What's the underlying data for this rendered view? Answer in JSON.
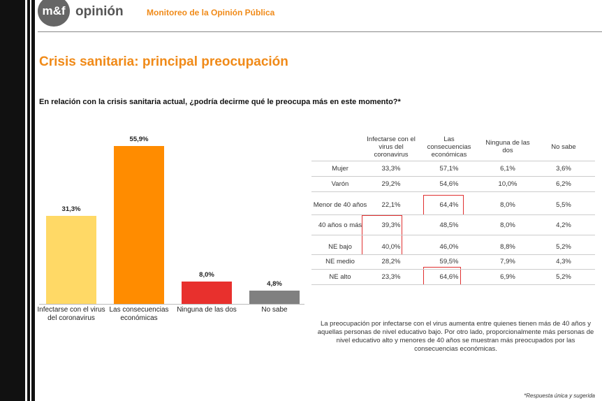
{
  "header": {
    "logo": "m&f",
    "brand": "opinión",
    "subtitle": "Monitoreo de la Opinión Pública"
  },
  "title": "Crisis sanitaria: principal preocupación",
  "question": "En relación con la crisis sanitaria actual, ¿podría decirme qué le preocupa más en este momento?*",
  "chart_data": {
    "type": "bar",
    "categories": [
      "Infectarse con el virus del coronavirus",
      "Las consecuencias económicas",
      "Ninguna de las dos",
      "No sabe"
    ],
    "values": [
      31.3,
      55.9,
      8.0,
      4.8
    ],
    "value_labels": [
      "31,3%",
      "55,9%",
      "8,0%",
      "4,8%"
    ],
    "colors": [
      "#ffd966",
      "#ff8c00",
      "#e8302d",
      "#808080"
    ]
  },
  "table": {
    "columns": [
      "Infectarse con el virus del coronavirus",
      "Las consecuencias económicas",
      "Ninguna de las dos",
      "No sabe"
    ],
    "rows": [
      [
        "Mujer",
        "33,3%",
        "57,1%",
        "6,1%",
        "3,6%"
      ],
      [
        "Varón",
        "29,2%",
        "54,6%",
        "10,0%",
        "6,2%"
      ],
      [
        "Menor de 40 años",
        "22,1%",
        "64,4%",
        "8,0%",
        "5,5%"
      ],
      [
        "40 años o más",
        "39,3%",
        "48,5%",
        "8,0%",
        "4,2%"
      ],
      [
        "NE bajo",
        "40,0%",
        "46,0%",
        "8,8%",
        "5,2%"
      ],
      [
        "NE medio",
        "28,2%",
        "59,5%",
        "7,9%",
        "4,3%"
      ],
      [
        "NE alto",
        "23,3%",
        "64,6%",
        "6,9%",
        "5,2%"
      ]
    ]
  },
  "note": "La preocupación por infectarse con el virus aumenta entre quienes tienen más de 40 años y aquellas personas de nivel educativo bajo. Por otro lado, proporcionalmente más personas de nivel educativo alto y menores de 40 años se muestran más preocupados por las consecuencias económicas.",
  "footnote": "*Respuesta única y sugerida"
}
